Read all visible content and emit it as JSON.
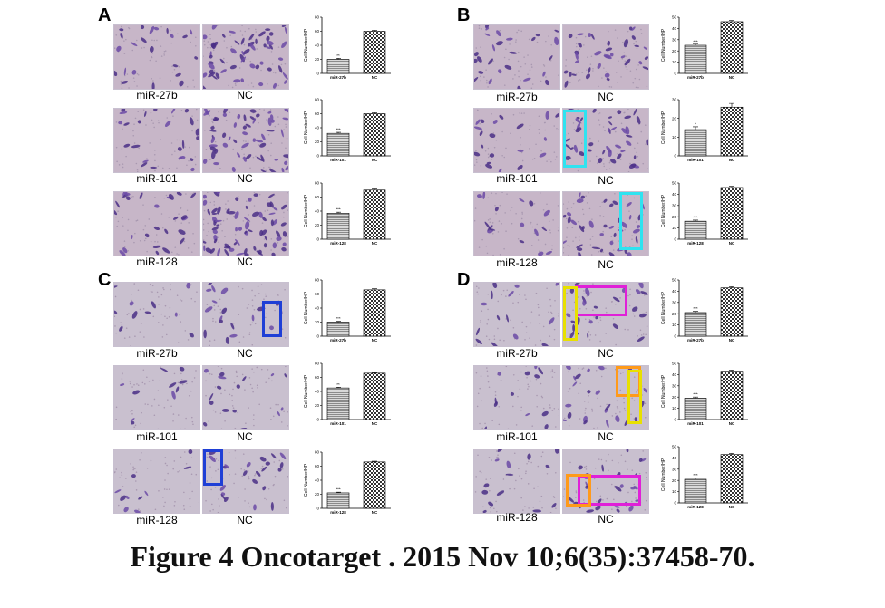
{
  "figure": {
    "caption": "Figure 4 Oncotarget . 2015 Nov 10;6(35):37458-70."
  },
  "panels": [
    {
      "letter": "A",
      "rows": [
        {
          "labels": [
            "miR-27b",
            "NC"
          ],
          "chart_index": 0
        },
        {
          "labels": [
            "miR-101",
            "NC"
          ],
          "chart_index": 1
        },
        {
          "labels": [
            "miR-128",
            "NC"
          ],
          "chart_index": 2
        }
      ]
    },
    {
      "letter": "B",
      "rows": [
        {
          "labels": [
            "miR-27b",
            "NC"
          ],
          "chart_index": 3
        },
        {
          "labels": [
            "miR-101",
            "NC"
          ],
          "chart_index": 4
        },
        {
          "labels": [
            "miR-128",
            "NC"
          ],
          "chart_index": 5
        }
      ]
    },
    {
      "letter": "C",
      "rows": [
        {
          "labels": [
            "miR-27b",
            "NC"
          ],
          "chart_index": 6
        },
        {
          "labels": [
            "miR-101",
            "NC"
          ],
          "chart_index": 7
        },
        {
          "labels": [
            "miR-128",
            "NC"
          ],
          "chart_index": 8
        }
      ]
    },
    {
      "letter": "D",
      "rows": [
        {
          "labels": [
            "miR-27b",
            "NC"
          ],
          "chart_index": 9
        },
        {
          "labels": [
            "miR-101",
            "NC"
          ],
          "chart_index": 10
        },
        {
          "labels": [
            "miR-128",
            "NC"
          ],
          "chart_index": 11
        }
      ]
    }
  ],
  "highlight_colors": {
    "cyan": "#2fe3f0",
    "blue": "#1f3fd6",
    "magenta": "#e020d8",
    "yellow": "#e8e000",
    "orange": "#ff9a1a"
  },
  "chart_data": [
    {
      "type": "bar",
      "categories": [
        "miR-27b",
        "NC"
      ],
      "values": [
        20,
        60
      ],
      "errors": [
        1.5,
        1.5
      ],
      "significance": [
        "**",
        ""
      ],
      "ylabel": "Cell Number/HP",
      "ylim": [
        0,
        80
      ],
      "yticks": [
        0,
        20,
        40,
        60,
        80
      ]
    },
    {
      "type": "bar",
      "categories": [
        "miR-101",
        "NC"
      ],
      "values": [
        32,
        60
      ],
      "errors": [
        1.5,
        1.5
      ],
      "significance": [
        "***",
        ""
      ],
      "ylabel": "Cell Number/HP",
      "ylim": [
        0,
        80
      ],
      "yticks": [
        0,
        20,
        40,
        60,
        80
      ]
    },
    {
      "type": "bar",
      "categories": [
        "miR-128",
        "NC"
      ],
      "values": [
        37,
        70
      ],
      "errors": [
        1.5,
        1.5
      ],
      "significance": [
        "***",
        ""
      ],
      "ylabel": "Cell Number/HP",
      "ylim": [
        0,
        80
      ],
      "yticks": [
        0,
        20,
        40,
        60,
        80
      ]
    },
    {
      "type": "bar",
      "categories": [
        "miR-27b",
        "NC"
      ],
      "values": [
        25,
        46
      ],
      "errors": [
        1,
        1
      ],
      "significance": [
        "***",
        ""
      ],
      "ylabel": "Cell Number/HP",
      "ylim": [
        0,
        50
      ],
      "yticks": [
        0,
        10,
        20,
        30,
        40,
        50
      ]
    },
    {
      "type": "bar",
      "categories": [
        "miR-101",
        "NC"
      ],
      "values": [
        14,
        26
      ],
      "errors": [
        1.5,
        2
      ],
      "significance": [
        "*",
        ""
      ],
      "ylabel": "Cell Number/HP",
      "ylim": [
        0,
        30
      ],
      "yticks": [
        0,
        10,
        20,
        30
      ]
    },
    {
      "type": "bar",
      "categories": [
        "miR-128",
        "NC"
      ],
      "values": [
        16,
        46
      ],
      "errors": [
        1,
        1
      ],
      "significance": [
        "***",
        ""
      ],
      "ylabel": "Cell Number/HP",
      "ylim": [
        0,
        50
      ],
      "yticks": [
        0,
        10,
        20,
        30,
        40,
        50
      ]
    },
    {
      "type": "bar",
      "categories": [
        "miR-27b",
        "NC"
      ],
      "values": [
        20,
        66
      ],
      "errors": [
        1,
        1.5
      ],
      "significance": [
        "***",
        ""
      ],
      "ylabel": "Cell Number/HP",
      "ylim": [
        0,
        80
      ],
      "yticks": [
        0,
        20,
        40,
        60,
        80
      ]
    },
    {
      "type": "bar",
      "categories": [
        "miR-101",
        "NC"
      ],
      "values": [
        45,
        66
      ],
      "errors": [
        1,
        1
      ],
      "significance": [
        "**",
        ""
      ],
      "ylabel": "Cell Number/HP",
      "ylim": [
        0,
        80
      ],
      "yticks": [
        0,
        20,
        40,
        60,
        80
      ]
    },
    {
      "type": "bar",
      "categories": [
        "miR-128",
        "NC"
      ],
      "values": [
        22,
        66
      ],
      "errors": [
        1,
        1
      ],
      "significance": [
        "***",
        ""
      ],
      "ylabel": "Cell Number/HP",
      "ylim": [
        0,
        80
      ],
      "yticks": [
        0,
        20,
        40,
        60,
        80
      ]
    },
    {
      "type": "bar",
      "categories": [
        "miR-27b",
        "NC"
      ],
      "values": [
        21,
        43
      ],
      "errors": [
        1,
        1
      ],
      "significance": [
        "***",
        ""
      ],
      "ylabel": "Cell Number/HP",
      "ylim": [
        0,
        50
      ],
      "yticks": [
        0,
        10,
        20,
        30,
        40,
        50
      ]
    },
    {
      "type": "bar",
      "categories": [
        "miR-101",
        "NC"
      ],
      "values": [
        19,
        43
      ],
      "errors": [
        1,
        1
      ],
      "significance": [
        "***",
        ""
      ],
      "ylabel": "Cell Number/HP",
      "ylim": [
        0,
        50
      ],
      "yticks": [
        0,
        10,
        20,
        30,
        40,
        50
      ]
    },
    {
      "type": "bar",
      "categories": [
        "miR-128",
        "NC"
      ],
      "values": [
        21,
        43
      ],
      "errors": [
        1,
        1
      ],
      "significance": [
        "***",
        ""
      ],
      "ylabel": "Cell Number/HP",
      "ylim": [
        0,
        50
      ],
      "yticks": [
        0,
        10,
        20,
        30,
        40,
        50
      ]
    }
  ]
}
